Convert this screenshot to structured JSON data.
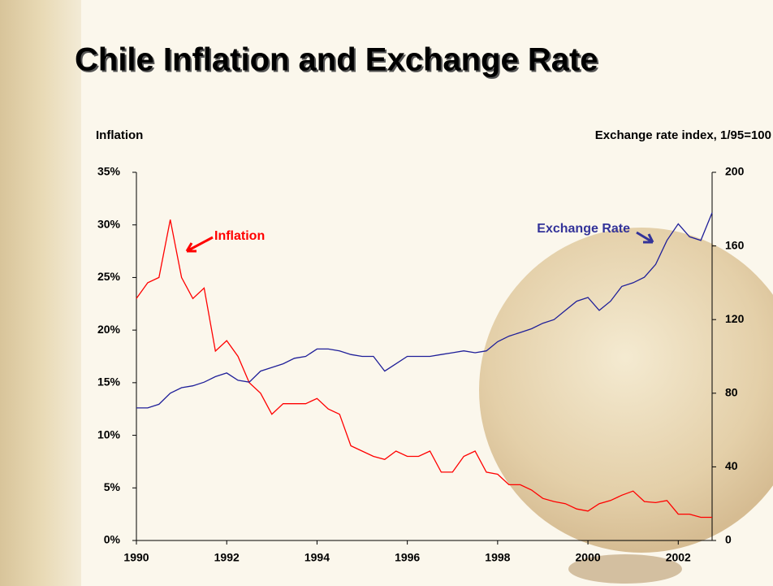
{
  "chart_data": {
    "type": "line",
    "title": "Chile Inflation and Exchange Rate",
    "ylabel": "Inflation",
    "y2label": "Exchange rate index, 1/95=100",
    "annotations": [
      "Inflation",
      "Exchange Rate"
    ],
    "x": [
      1990,
      1990.25,
      1990.5,
      1990.75,
      1991,
      1991.25,
      1991.5,
      1991.75,
      1992,
      1992.25,
      1992.5,
      1992.75,
      1993,
      1993.25,
      1993.5,
      1993.75,
      1994,
      1994.25,
      1994.5,
      1994.75,
      1995,
      1995.25,
      1995.5,
      1995.75,
      1996,
      1996.25,
      1996.5,
      1996.75,
      1997,
      1997.25,
      1997.5,
      1997.75,
      1998,
      1998.25,
      1998.5,
      1998.75,
      1999,
      1999.25,
      1999.5,
      1999.75,
      2000,
      2000.25,
      2000.5,
      2000.75,
      2001,
      2001.25,
      2001.5,
      2001.75,
      2002,
      2002.25,
      2002.5,
      2002.75
    ],
    "series": [
      {
        "name": "Inflation",
        "color": "#ff0000",
        "axis": "y",
        "values": [
          23,
          24.5,
          25,
          30.5,
          25,
          23,
          24,
          18,
          19,
          17.5,
          15,
          14,
          12,
          13,
          13,
          13,
          13.5,
          12.5,
          12,
          9,
          8.5,
          8,
          7.7,
          8.5,
          8,
          8,
          8.5,
          6.5,
          6.5,
          8,
          8.5,
          6.5,
          6.3,
          5.3,
          5.3,
          4.8,
          4,
          3.7,
          3.5,
          3,
          2.8,
          3.5,
          3.8,
          4.3,
          4.7,
          3.7,
          3.6,
          3.8,
          2.5,
          2.5,
          2.2,
          2.2
        ]
      },
      {
        "name": "Exchange Rate",
        "color": "#1f1f99",
        "axis": "y2",
        "values": [
          72,
          72,
          74,
          80,
          83,
          84,
          86,
          89,
          91,
          87,
          86,
          92,
          94,
          96,
          99,
          100,
          104,
          104,
          103,
          101,
          100,
          100,
          92,
          96,
          100,
          100,
          100,
          101,
          102,
          103,
          102,
          103,
          108,
          111,
          113,
          115,
          118,
          120,
          125,
          130,
          132,
          125,
          130,
          138,
          140,
          143,
          150,
          163,
          172,
          165,
          163,
          178
        ]
      }
    ],
    "xlim": [
      1990,
      2002.75
    ],
    "xticks": [
      1990,
      1992,
      1994,
      1996,
      1998,
      2000,
      2002
    ],
    "ylim": [
      0,
      35
    ],
    "yticks": [
      {
        "value": 0,
        "label": "0%"
      },
      {
        "value": 5,
        "label": "5%"
      },
      {
        "value": 10,
        "label": "10%"
      },
      {
        "value": 15,
        "label": "15%"
      },
      {
        "value": 20,
        "label": "20%"
      },
      {
        "value": 25,
        "label": "25%"
      },
      {
        "value": 30,
        "label": "30%"
      },
      {
        "value": 35,
        "label": "35%"
      }
    ],
    "y2lim": [
      0,
      200
    ],
    "y2ticks": [
      0,
      40,
      80,
      120,
      160,
      200
    ]
  }
}
